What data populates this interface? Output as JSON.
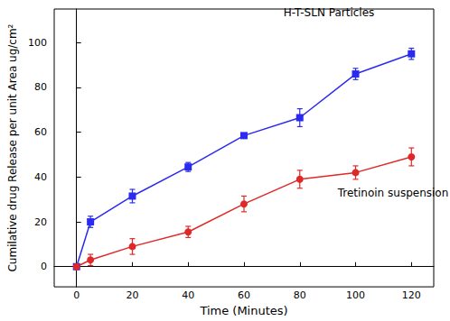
{
  "chart_data": {
    "type": "line",
    "x_label": "Time (Minutes)",
    "y_label": "Cumilative drug Release per unit Area ug/cm²",
    "x": [
      0,
      5,
      20,
      40,
      60,
      80,
      100,
      120
    ],
    "series": [
      {
        "name": "H-T-SLN Particles",
        "color": "#2b2bef",
        "marker": "square",
        "values": [
          0,
          20,
          31.5,
          44.5,
          58.5,
          66.5,
          86,
          95
        ],
        "errors": [
          0,
          2.5,
          3,
          2,
          1,
          4,
          2.5,
          2.5
        ]
      },
      {
        "name": "Tretinoin suspension",
        "color": "#e02828",
        "marker": "circle",
        "values": [
          0,
          3,
          9,
          15.5,
          28,
          39,
          42,
          49
        ],
        "errors": [
          0,
          2.5,
          3.5,
          2.5,
          3.5,
          4,
          3,
          4
        ]
      }
    ],
    "xlim": [
      -8,
      128
    ],
    "xticks": [
      0,
      20,
      40,
      60,
      80,
      100,
      120
    ],
    "ylim": [
      -9,
      115
    ],
    "yticks": [
      0,
      20,
      40,
      60,
      80,
      100
    ],
    "grid": false
  }
}
